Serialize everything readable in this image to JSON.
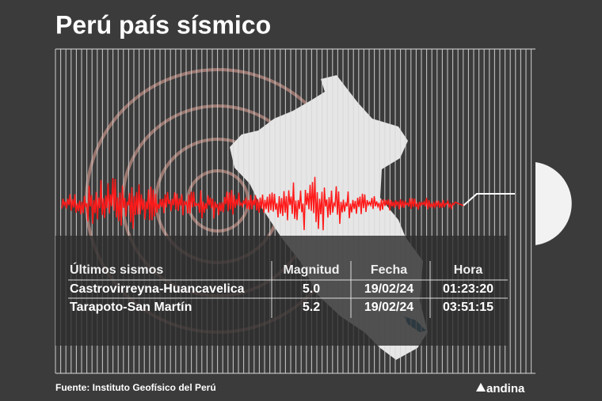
{
  "header": {
    "title": "Perú país sísmico"
  },
  "table": {
    "columns": [
      "Últimos sismos",
      "Magnitud",
      "Fecha",
      "Hora"
    ],
    "rows": [
      [
        "Castrovirreyna-Huancavelica",
        "5.0",
        "19/02/24",
        "01:23:20"
      ],
      [
        "Tarapoto-San Martín",
        "5.2",
        "19/02/24",
        "03:51:15"
      ]
    ]
  },
  "footer": {
    "source": "Fuente: Instituto Geofísico del Perú",
    "logo": "andina"
  }
}
